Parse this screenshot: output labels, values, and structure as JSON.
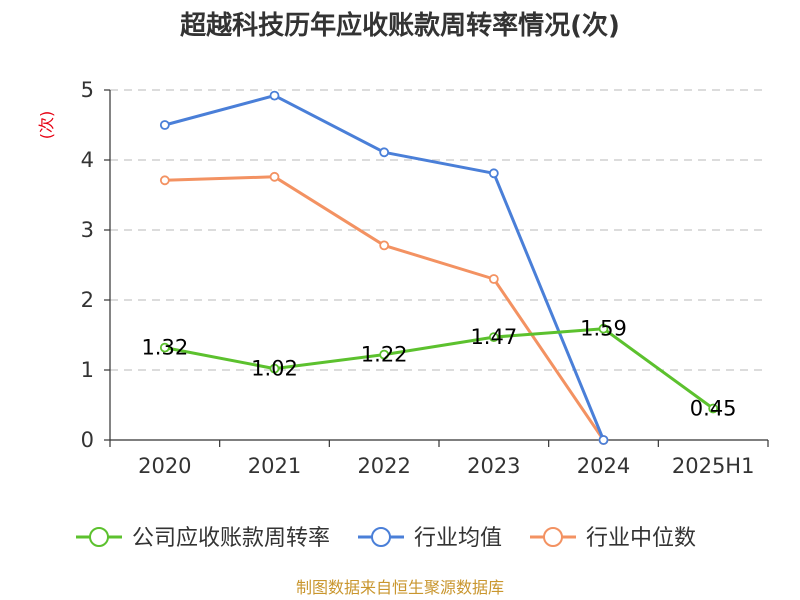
{
  "chart_data": {
    "type": "line",
    "title": "超越科技历年应收账款周转率情况(次)",
    "ylabel": "(次)",
    "xlabel": "",
    "categories": [
      "2020",
      "2021",
      "2022",
      "2023",
      "2024",
      "2025H1"
    ],
    "ylim": [
      0,
      5
    ],
    "yticks": [
      "0",
      "1",
      "2",
      "3",
      "4",
      "5"
    ],
    "grid": true,
    "legend_position": "bottom",
    "series": [
      {
        "name": "公司应收账款周转率",
        "color": "#5cc12e",
        "values": [
          1.32,
          1.02,
          1.22,
          1.47,
          1.59,
          0.45
        ],
        "labels": [
          "1.32",
          "1.02",
          "1.22",
          "1.47",
          "1.59",
          "0.45"
        ]
      },
      {
        "name": "行业均值",
        "color": "#4a7fd8",
        "values": [
          4.5,
          4.92,
          4.11,
          3.81,
          0,
          null
        ]
      },
      {
        "name": "行业中位数",
        "color": "#f39262",
        "values": [
          3.71,
          3.76,
          2.78,
          2.3,
          0,
          null
        ]
      }
    ]
  },
  "source": "制图数据来自恒生聚源数据库"
}
